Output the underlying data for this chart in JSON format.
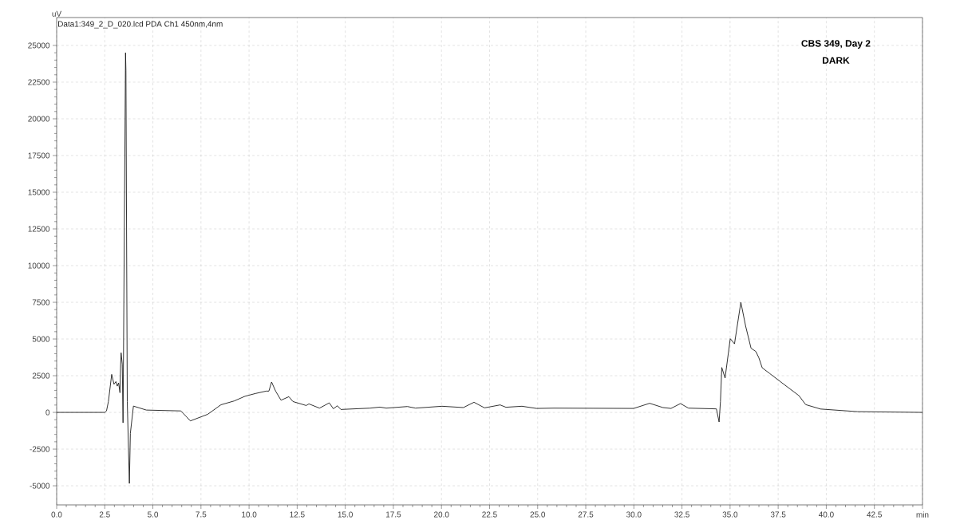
{
  "chart_data": {
    "type": "line",
    "title": "CBS 349, Day 2",
    "subtitle": "DARK",
    "ylabel": "uV",
    "annotations": [
      "Data1:349_2_D_020.lcd PDA Ch1 450nm,4nm"
    ],
    "xlim": [
      0,
      45
    ],
    "ylim": [
      -6300,
      26900
    ],
    "xticks": [
      {
        "value": 0,
        "label": "0.0"
      },
      2.5,
      {
        "value": 5,
        "label": "5.0"
      },
      7.5,
      {
        "value": 10,
        "label": "10.0"
      },
      12.5,
      {
        "value": 15,
        "label": "15.0"
      },
      17.5,
      {
        "value": 20,
        "label": "20.0"
      },
      22.5,
      {
        "value": 25,
        "label": "25.0"
      },
      27.5,
      {
        "value": 30,
        "label": "30.0"
      },
      32.5,
      {
        "value": 35,
        "label": "35.0"
      },
      37.5,
      {
        "value": 40,
        "label": "40.0"
      },
      42.5,
      {
        "value": 45,
        "label": "min"
      }
    ],
    "yticks": [
      -5000,
      -2500,
      0,
      2500,
      5000,
      7500,
      10000,
      12500,
      15000,
      17500,
      20000,
      22500,
      25000
    ],
    "grid": true,
    "series": [
      {
        "color": "#1a1a1a",
        "x": [
          0,
          2.5,
          2.59,
          2.69,
          2.86,
          2.98,
          3.08,
          3.15,
          3.22,
          3.29,
          3.32,
          3.35,
          3.41,
          3.45,
          3.58,
          3.6,
          3.67,
          3.78,
          3.83,
          3.99,
          4.66,
          6.46,
          6.95,
          7.85,
          8.54,
          9.23,
          9.79,
          10.34,
          10.89,
          11.03,
          11.17,
          11.38,
          11.66,
          12.07,
          12.28,
          12.97,
          13.11,
          13.66,
          14.17,
          14.38,
          14.59,
          14.77,
          16.29,
          16.8,
          17.13,
          18.23,
          18.65,
          20.03,
          21.14,
          21.69,
          22.24,
          23.05,
          23.35,
          24.18,
          24.94,
          25.84,
          29.99,
          30.82,
          31.51,
          31.93,
          32.42,
          32.84,
          34.29,
          34.43,
          34.5,
          34.57,
          34.74,
          35.01,
          35.23,
          35.56,
          35.81,
          36.09,
          36.34,
          36.5,
          36.67,
          37.06,
          37.61,
          38.58,
          38.93,
          39.7,
          41.63,
          45
        ],
        "values": [
          0,
          0,
          100,
          740,
          2590,
          1920,
          2100,
          1790,
          2010,
          1340,
          3040,
          4060,
          3280,
          -710,
          24500,
          23300,
          740,
          -4840,
          -1430,
          430,
          160,
          100,
          -580,
          -130,
          520,
          780,
          1100,
          1290,
          1450,
          1450,
          2070,
          1450,
          830,
          1070,
          740,
          470,
          580,
          290,
          650,
          250,
          450,
          200,
          290,
          360,
          290,
          400,
          290,
          420,
          330,
          690,
          310,
          510,
          350,
          420,
          270,
          290,
          270,
          620,
          330,
          270,
          600,
          290,
          240,
          -650,
          740,
          3060,
          2340,
          5020,
          4670,
          7500,
          5870,
          4370,
          4150,
          3710,
          3040,
          2650,
          2100,
          1140,
          530,
          230,
          50,
          0
        ]
      }
    ]
  }
}
